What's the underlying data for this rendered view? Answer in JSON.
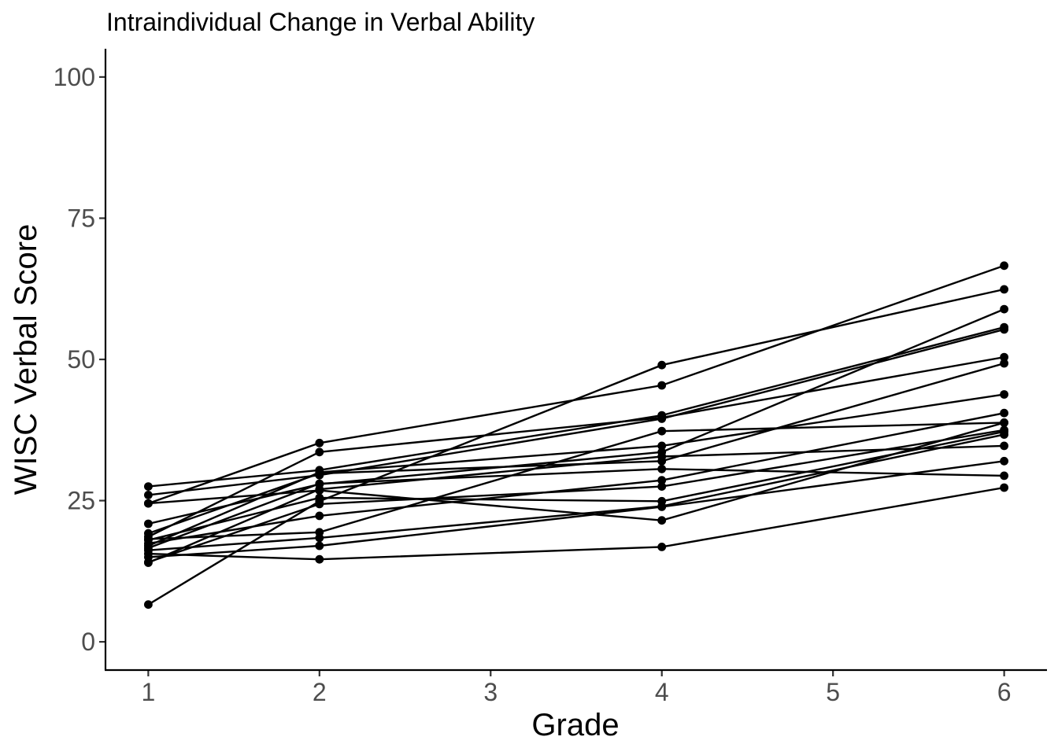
{
  "chart_data": {
    "type": "line",
    "title": "Intraindividual Change in Verbal Ability",
    "xlabel": "Grade",
    "ylabel": "WISC Verbal Score",
    "x": [
      1,
      2,
      4,
      6
    ],
    "xlim": [
      0.75,
      6.25
    ],
    "ylim": [
      -5,
      105
    ],
    "xticks": [
      1,
      2,
      3,
      4,
      5,
      6
    ],
    "yticks": [
      0,
      25,
      50,
      75,
      100
    ],
    "grid": false,
    "legend": "none",
    "colors": {
      "line": "#000000",
      "point": "#000000",
      "tick_label": "#4d4d4d"
    },
    "series": [
      {
        "values": [
          6.6,
          24.9,
          49.0,
          62.4
        ]
      },
      {
        "values": [
          27.5,
          30.4,
          40.1,
          55.7
        ]
      },
      {
        "values": [
          26.0,
          29.5,
          39.5,
          55.3
        ]
      },
      {
        "values": [
          24.5,
          35.2,
          45.4,
          66.6
        ]
      },
      {
        "values": [
          24.5,
          26.8,
          21.5,
          38.8
        ]
      },
      {
        "values": [
          20.9,
          27.9,
          33.6,
          58.9
        ]
      },
      {
        "values": [
          19.2,
          29.8,
          32.0,
          49.3
        ]
      },
      {
        "values": [
          18.6,
          33.6,
          39.7,
          50.4
        ]
      },
      {
        "values": [
          18.2,
          19.4,
          37.3,
          38.8
        ]
      },
      {
        "values": [
          18.0,
          25.5,
          24.9,
          37.2
        ]
      },
      {
        "values": [
          17.4,
          22.3,
          28.6,
          40.5
        ]
      },
      {
        "values": [
          17.0,
          30.0,
          34.7,
          43.8
        ]
      },
      {
        "values": [
          16.6,
          28.0,
          30.6,
          29.4
        ]
      },
      {
        "values": [
          16.2,
          18.4,
          24.0,
          36.7
        ]
      },
      {
        "values": [
          15.6,
          14.6,
          16.8,
          27.3
        ]
      },
      {
        "values": [
          15.0,
          17.0,
          23.9,
          32.0
        ]
      },
      {
        "values": [
          14.1,
          24.4,
          27.5,
          37.5
        ]
      },
      {
        "values": [
          14.0,
          27.0,
          32.8,
          34.7
        ]
      }
    ]
  }
}
